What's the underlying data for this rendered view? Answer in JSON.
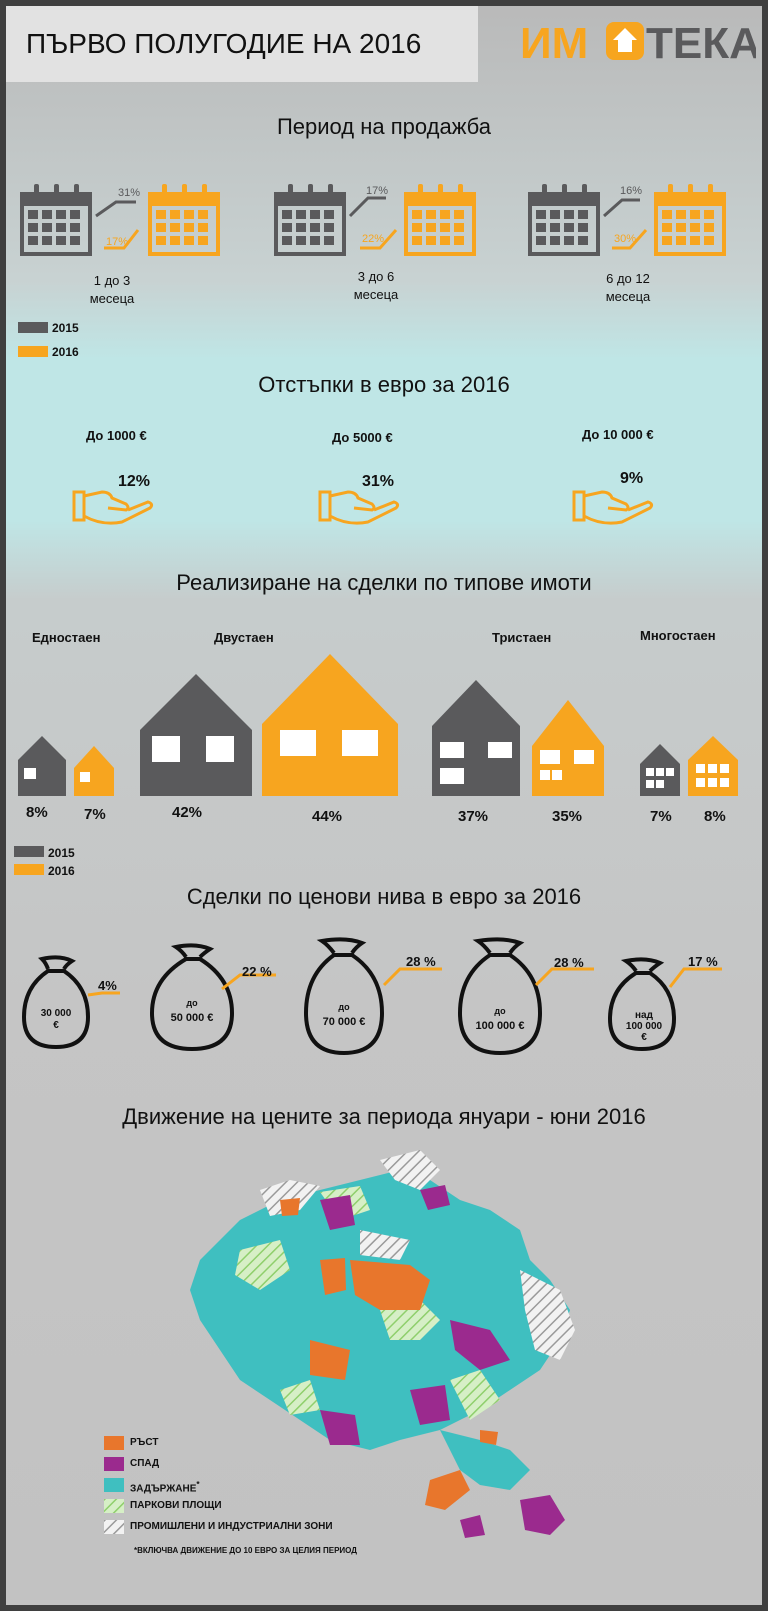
{
  "header": {
    "title": "ПЪРВО ПОЛУГОДИЕ НА 2016",
    "logo_text": "ИМОТЕКА"
  },
  "colors": {
    "gray": "#5a5a5c",
    "orange": "#f7a51f",
    "dark_orange": "#e8762c",
    "purple": "#9b2a8e",
    "teal": "#3fbfc0",
    "green": "#bfe6a8"
  },
  "sale_period": {
    "title": "Период на продажба",
    "items": [
      {
        "label_line1": "1 до 3",
        "label_line2": "месеца",
        "pct_2015": "31%",
        "pct_2016": "17%"
      },
      {
        "label_line1": "3 до 6",
        "label_line2": "месеца",
        "pct_2015": "17%",
        "pct_2016": "22%"
      },
      {
        "label_line1": "6 до 12",
        "label_line2": "месеца",
        "pct_2015": "16%",
        "pct_2016": "30%"
      }
    ],
    "legend": [
      {
        "label": "2015",
        "color": "#5a5a5c"
      },
      {
        "label": "2016",
        "color": "#f7a51f"
      }
    ]
  },
  "discounts": {
    "title": "Отстъпки в евро за 2016",
    "items": [
      {
        "label": "До 1000 €",
        "pct": "12%"
      },
      {
        "label": "До 5000 €",
        "pct": "31%"
      },
      {
        "label": "До 10 000 €",
        "pct": "9%"
      }
    ]
  },
  "property_types": {
    "title": "Реализиране на сделки по типове имоти",
    "items": [
      {
        "name": "Едностаен",
        "pct_2015": "8%",
        "pct_2016": "7%"
      },
      {
        "name": "Двустаен",
        "pct_2015": "42%",
        "pct_2016": "44%"
      },
      {
        "name": "Тристаен",
        "pct_2015": "37%",
        "pct_2016": "35%"
      },
      {
        "name": "Многостаен",
        "pct_2015": "7%",
        "pct_2016": "8%"
      }
    ],
    "legend": [
      {
        "label": "2015",
        "color": "#5a5a5c"
      },
      {
        "label": "2016",
        "color": "#f7a51f"
      }
    ]
  },
  "price_levels": {
    "title": "Сделки по ценови нива в евро за 2016",
    "items": [
      {
        "line1": "",
        "line2": "30 000",
        "line3": "€",
        "pct": "4%"
      },
      {
        "line1": "до",
        "line2": "50 000 €",
        "line3": "",
        "pct": "22 %"
      },
      {
        "line1": "до",
        "line2": "70 000  €",
        "line3": "",
        "pct": "28 %"
      },
      {
        "line1": "до",
        "line2": "100 000  €",
        "line3": "",
        "pct": "28 %"
      },
      {
        "line1": "над",
        "line2": "100 000",
        "line3": "€",
        "pct": "17 %"
      }
    ]
  },
  "price_map": {
    "title": "Движение на цените за периода януари - юни 2016",
    "legend": [
      {
        "label": "РЪСТ",
        "color": "#e8762c",
        "pattern": "solid"
      },
      {
        "label": "СПАД",
        "color": "#9b2a8e",
        "pattern": "solid"
      },
      {
        "label": "ЗАДЪРЖАНЕ",
        "color": "#3fbfc0",
        "pattern": "solid",
        "mark": "*"
      },
      {
        "label": "ПАРКОВИ ПЛОЩИ",
        "color": "#bfe6a8",
        "pattern": "hatch-green"
      },
      {
        "label": "ПРОМИШЛЕНИ И ИНДУСТРИАЛНИ ЗОНИ",
        "color": "#e8e8e8",
        "pattern": "hatch-gray"
      }
    ],
    "footnote": "*ВКЛЮЧВА ДВИЖЕНИЕ ДО 10 ЕВРО ЗА ЦЕЛИЯ ПЕРИОД"
  }
}
